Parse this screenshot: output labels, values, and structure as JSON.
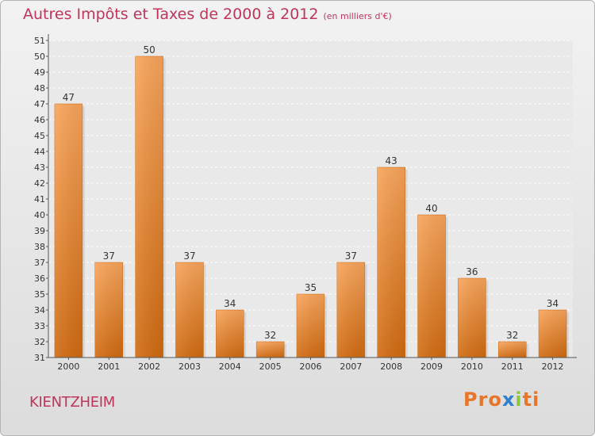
{
  "title": "Autres Impôts et Taxes de 2000 à 2012",
  "unit_label": "(en milliers d'€)",
  "commune": "KIENTZHEIM",
  "logo": {
    "letters": [
      "P",
      "r",
      "o",
      "x",
      "i",
      "t",
      "i"
    ],
    "colors": [
      "#e8762a",
      "#e8762a",
      "#e8762a",
      "#2f7fd0",
      "#8cc63f",
      "#e8762a",
      "#e8762a"
    ]
  },
  "colors": {
    "title": "#c0355a",
    "bar_top": "#f8a45a",
    "bar_bottom": "#d06a10",
    "axis": "#555555"
  },
  "chart_data": {
    "type": "bar",
    "categories": [
      "2000",
      "2001",
      "2002",
      "2003",
      "2004",
      "2005",
      "2006",
      "2007",
      "2008",
      "2009",
      "2010",
      "2011",
      "2012"
    ],
    "values": [
      47,
      37,
      50,
      37,
      34,
      32,
      35,
      37,
      43,
      40,
      36,
      32,
      34
    ],
    "yticks": [
      31,
      32,
      33,
      34,
      35,
      36,
      37,
      38,
      39,
      40,
      41,
      42,
      43,
      44,
      45,
      46,
      47,
      48,
      49,
      50,
      51
    ],
    "ylim": [
      31,
      51
    ],
    "grid": true,
    "title": "Autres Impôts et Taxes de 2000 à 2012",
    "xlabel": "",
    "ylabel": ""
  }
}
